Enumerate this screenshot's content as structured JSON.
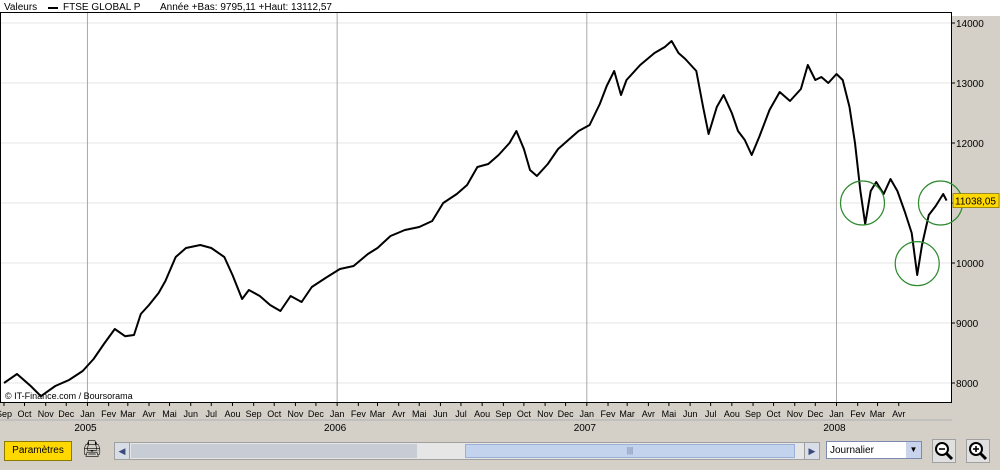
{
  "header": {
    "label": "Valeurs",
    "series_name": "FTSE GLOBAL P",
    "stats": "Année +Bas: 9795,11 +Haut: 13112,57"
  },
  "chart_data": {
    "type": "line",
    "series": [
      {
        "name": "FTSE GLOBAL P",
        "points": [
          [
            "2004-09-01",
            8000
          ],
          [
            "2004-09-20",
            8150
          ],
          [
            "2004-10-10",
            7950
          ],
          [
            "2004-10-25",
            7780
          ],
          [
            "2004-11-15",
            7950
          ],
          [
            "2004-12-05",
            8050
          ],
          [
            "2004-12-25",
            8200
          ],
          [
            "2005-01-10",
            8400
          ],
          [
            "2005-01-25",
            8650
          ],
          [
            "2005-02-10",
            8900
          ],
          [
            "2005-02-25",
            8780
          ],
          [
            "2005-03-10",
            8800
          ],
          [
            "2005-03-20",
            9150
          ],
          [
            "2005-04-01",
            9300
          ],
          [
            "2005-04-15",
            9500
          ],
          [
            "2005-04-25",
            9700
          ],
          [
            "2005-05-10",
            10100
          ],
          [
            "2005-05-25",
            10250
          ],
          [
            "2005-06-15",
            10300
          ],
          [
            "2005-07-01",
            10250
          ],
          [
            "2005-07-20",
            10100
          ],
          [
            "2005-08-01",
            9800
          ],
          [
            "2005-08-15",
            9400
          ],
          [
            "2005-08-25",
            9550
          ],
          [
            "2005-09-10",
            9450
          ],
          [
            "2005-09-25",
            9300
          ],
          [
            "2005-10-10",
            9200
          ],
          [
            "2005-10-25",
            9450
          ],
          [
            "2005-11-10",
            9350
          ],
          [
            "2005-11-25",
            9600
          ],
          [
            "2005-12-15",
            9750
          ],
          [
            "2006-01-05",
            9900
          ],
          [
            "2006-01-25",
            9950
          ],
          [
            "2006-02-15",
            10150
          ],
          [
            "2006-03-01",
            10250
          ],
          [
            "2006-03-20",
            10450
          ],
          [
            "2006-04-10",
            10550
          ],
          [
            "2006-05-01",
            10600
          ],
          [
            "2006-05-20",
            10700
          ],
          [
            "2006-06-05",
            11000
          ],
          [
            "2006-06-25",
            11150
          ],
          [
            "2006-07-10",
            11300
          ],
          [
            "2006-07-25",
            11600
          ],
          [
            "2006-08-10",
            11650
          ],
          [
            "2006-08-25",
            11800
          ],
          [
            "2006-09-10",
            12000
          ],
          [
            "2006-09-20",
            12200
          ],
          [
            "2006-10-01",
            11900
          ],
          [
            "2006-10-10",
            11550
          ],
          [
            "2006-10-20",
            11450
          ],
          [
            "2006-11-05",
            11650
          ],
          [
            "2006-11-20",
            11900
          ],
          [
            "2006-12-05",
            12050
          ],
          [
            "2006-12-20",
            12200
          ],
          [
            "2007-01-05",
            12300
          ],
          [
            "2007-01-20",
            12650
          ],
          [
            "2007-01-30",
            12950
          ],
          [
            "2007-02-10",
            13200
          ],
          [
            "2007-02-20",
            12800
          ],
          [
            "2007-02-28",
            13050
          ],
          [
            "2007-03-20",
            13300
          ],
          [
            "2007-04-10",
            13500
          ],
          [
            "2007-04-25",
            13600
          ],
          [
            "2007-05-05",
            13700
          ],
          [
            "2007-05-15",
            13500
          ],
          [
            "2007-05-25",
            13400
          ],
          [
            "2007-06-10",
            13200
          ],
          [
            "2007-06-20",
            12600
          ],
          [
            "2007-06-28",
            12150
          ],
          [
            "2007-07-10",
            12600
          ],
          [
            "2007-07-20",
            12800
          ],
          [
            "2007-08-01",
            12500
          ],
          [
            "2007-08-10",
            12200
          ],
          [
            "2007-08-20",
            12050
          ],
          [
            "2007-08-30",
            11800
          ],
          [
            "2007-09-10",
            12100
          ],
          [
            "2007-09-25",
            12550
          ],
          [
            "2007-10-10",
            12850
          ],
          [
            "2007-10-25",
            12700
          ],
          [
            "2007-11-10",
            12900
          ],
          [
            "2007-11-20",
            13300
          ],
          [
            "2007-12-01",
            13050
          ],
          [
            "2007-12-10",
            13100
          ],
          [
            "2007-12-20",
            13000
          ],
          [
            "2008-01-01",
            13150
          ],
          [
            "2008-01-10",
            13050
          ],
          [
            "2008-01-20",
            12600
          ],
          [
            "2008-01-28",
            12000
          ],
          [
            "2008-02-05",
            11200
          ],
          [
            "2008-02-12",
            10650
          ],
          [
            "2008-02-20",
            11200
          ],
          [
            "2008-02-28",
            11350
          ],
          [
            "2008-03-10",
            11150
          ],
          [
            "2008-03-20",
            11400
          ],
          [
            "2008-03-30",
            11200
          ],
          [
            "2008-04-10",
            10850
          ],
          [
            "2008-04-20",
            10500
          ],
          [
            "2008-04-28",
            9800
          ],
          [
            "2008-05-05",
            10300
          ],
          [
            "2008-05-15",
            10800
          ],
          [
            "2008-05-25",
            10950
          ],
          [
            "2008-06-05",
            11150
          ],
          [
            "2008-06-10",
            11040
          ]
        ]
      }
    ],
    "y_ticks": [
      8000,
      9000,
      10000,
      11000,
      12000,
      13000,
      14000
    ],
    "ylim": [
      7700,
      14150
    ],
    "xlim": [
      "2004-09-01",
      "2008-06-12"
    ],
    "month_ticks": [
      [
        "2004-09-01",
        "Sep"
      ],
      [
        "2004-10-01",
        "Oct"
      ],
      [
        "2004-11-01",
        "Nov"
      ],
      [
        "2004-12-01",
        "Dec"
      ],
      [
        "2005-01-01",
        "Jan"
      ],
      [
        "2005-02-01",
        "Fev"
      ],
      [
        "2005-03-01",
        "Mar"
      ],
      [
        "2005-04-01",
        "Avr"
      ],
      [
        "2005-05-01",
        "Mai"
      ],
      [
        "2005-06-01",
        "Jun"
      ],
      [
        "2005-07-01",
        "Jul"
      ],
      [
        "2005-08-01",
        "Aou"
      ],
      [
        "2005-09-01",
        "Sep"
      ],
      [
        "2005-10-01",
        "Oct"
      ],
      [
        "2005-11-01",
        "Nov"
      ],
      [
        "2005-12-01",
        "Dec"
      ],
      [
        "2006-01-01",
        "Jan"
      ],
      [
        "2006-02-01",
        "Fev"
      ],
      [
        "2006-03-01",
        "Mar"
      ],
      [
        "2006-04-01",
        "Avr"
      ],
      [
        "2006-05-01",
        "Mai"
      ],
      [
        "2006-06-01",
        "Jun"
      ],
      [
        "2006-07-01",
        "Jul"
      ],
      [
        "2006-08-01",
        "Aou"
      ],
      [
        "2006-09-01",
        "Sep"
      ],
      [
        "2006-10-01",
        "Oct"
      ],
      [
        "2006-11-01",
        "Nov"
      ],
      [
        "2006-12-01",
        "Dec"
      ],
      [
        "2007-01-01",
        "Jan"
      ],
      [
        "2007-02-01",
        "Fev"
      ],
      [
        "2007-03-01",
        "Mar"
      ],
      [
        "2007-04-01",
        "Avr"
      ],
      [
        "2007-05-01",
        "Mai"
      ],
      [
        "2007-06-01",
        "Jun"
      ],
      [
        "2007-07-01",
        "Jul"
      ],
      [
        "2007-08-01",
        "Aou"
      ],
      [
        "2007-09-01",
        "Sep"
      ],
      [
        "2007-10-01",
        "Oct"
      ],
      [
        "2007-11-01",
        "Nov"
      ],
      [
        "2007-12-01",
        "Dec"
      ],
      [
        "2008-01-01",
        "Jan"
      ],
      [
        "2008-02-01",
        "Fev"
      ],
      [
        "2008-03-01",
        "Mar"
      ],
      [
        "2008-04-01",
        "Avr"
      ]
    ],
    "year_ticks": [
      [
        "2005-01-01",
        "2005"
      ],
      [
        "2006-01-01",
        "2006"
      ],
      [
        "2007-01-01",
        "2007"
      ],
      [
        "2008-01-01",
        "2008"
      ]
    ],
    "year_separators": [
      "2005-01-01",
      "2006-01-01",
      "2007-01-01",
      "2008-01-01"
    ],
    "last_value_label": "11038,05",
    "highlight_circles": [
      {
        "date": "2008-02-08",
        "value": 11000
      },
      {
        "date": "2008-04-28",
        "value": 9990
      },
      {
        "date": "2008-06-01",
        "value": 11000
      }
    ],
    "grid": true,
    "colors": {
      "line": "#000000",
      "circle": "#2e8b2e",
      "last_value_bg": "#ffd800",
      "grid": "#e4e4e4",
      "separator": "#a8a8a8"
    }
  },
  "watermark": "© IT-Finance.com / Boursorama",
  "controls": {
    "params_label": "Paramètres",
    "period_value": "Journalier",
    "print_icon": "printer-icon",
    "zoom_out_icon": "zoom-out-icon",
    "zoom_in_icon": "zoom-in-icon"
  }
}
